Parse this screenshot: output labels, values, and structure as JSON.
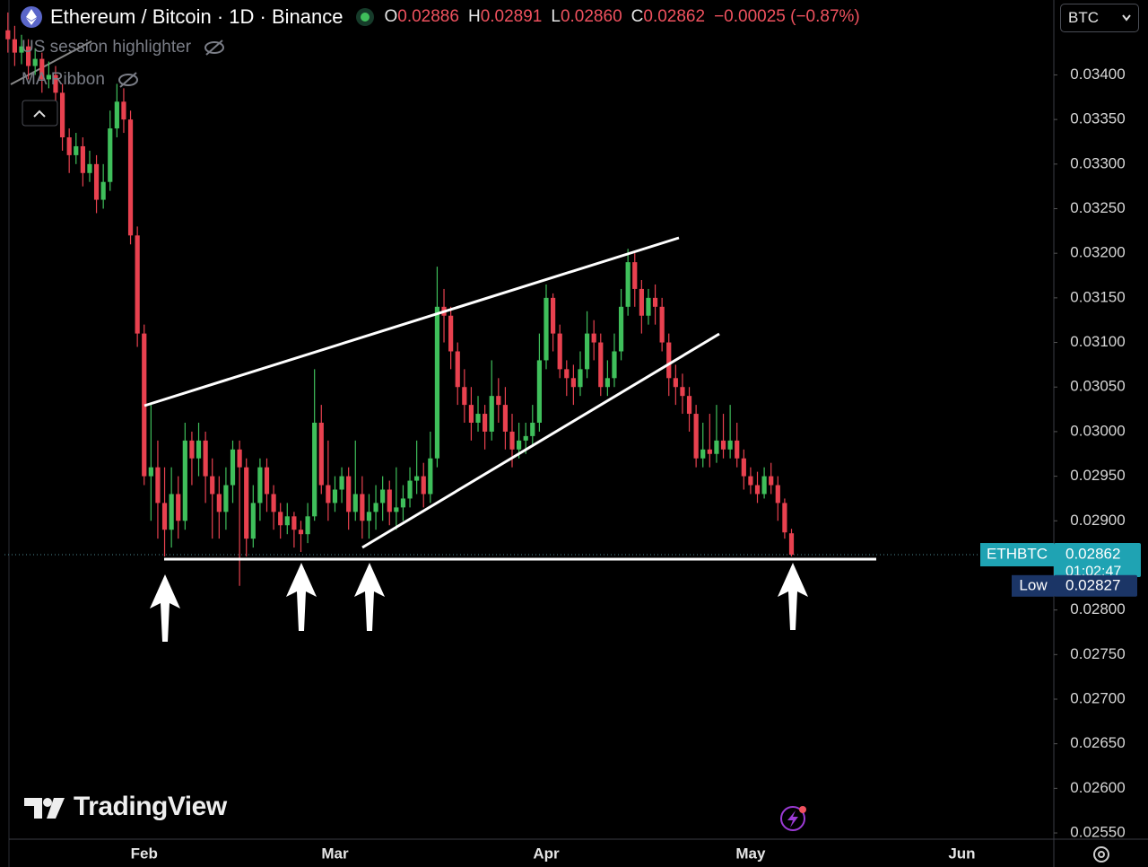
{
  "header": {
    "symbol": "Ethereum / Bitcoin · 1D · Binance",
    "ohlc": [
      {
        "key": "O",
        "value": "0.02886"
      },
      {
        "key": "H",
        "value": "0.02891"
      },
      {
        "key": "L",
        "value": "0.02860"
      },
      {
        "key": "C",
        "value": "0.02862"
      }
    ],
    "change": "−0.00025 (−0.87%)",
    "indicators": [
      "US session highlighter",
      "MA Ribbon"
    ],
    "currency": "BTC",
    "watermark": "TradingView"
  },
  "chart_data": {
    "type": "candlestick",
    "up_color": "#3fbf5b",
    "down_color": "#e8414f",
    "grid": false,
    "ylim": [
      0.02543,
      0.03484
    ],
    "yticks": [
      {
        "value": 0.034,
        "label": "0.03400"
      },
      {
        "value": 0.0335,
        "label": "0.03350"
      },
      {
        "value": 0.033,
        "label": "0.03300"
      },
      {
        "value": 0.0325,
        "label": "0.03250"
      },
      {
        "value": 0.032,
        "label": "0.03200"
      },
      {
        "value": 0.0315,
        "label": "0.03150"
      },
      {
        "value": 0.031,
        "label": "0.03100"
      },
      {
        "value": 0.0305,
        "label": "0.03050"
      },
      {
        "value": 0.03,
        "label": "0.03000"
      },
      {
        "value": 0.0295,
        "label": "0.02950"
      },
      {
        "value": 0.029,
        "label": "0.02900"
      },
      {
        "value": 0.0285,
        "label": "0.02850"
      },
      {
        "value": 0.028,
        "label": "0.02800"
      },
      {
        "value": 0.0275,
        "label": "0.02750"
      },
      {
        "value": 0.027,
        "label": "0.02700"
      },
      {
        "value": 0.0265,
        "label": "0.02650"
      },
      {
        "value": 0.026,
        "label": "0.02600"
      },
      {
        "value": 0.0255,
        "label": "0.02550"
      }
    ],
    "categories": [
      null,
      null,
      null,
      null,
      null,
      null,
      null,
      null,
      null,
      null,
      null,
      null,
      null,
      null,
      null,
      null,
      null,
      null,
      null,
      null,
      "Feb",
      null,
      null,
      null,
      null,
      null,
      null,
      null,
      null,
      null,
      null,
      null,
      null,
      null,
      null,
      null,
      null,
      null,
      null,
      null,
      null,
      null,
      null,
      null,
      null,
      null,
      null,
      null,
      "Mar",
      null,
      null,
      null,
      null,
      null,
      null,
      null,
      null,
      null,
      null,
      null,
      null,
      null,
      null,
      null,
      null,
      null,
      null,
      null,
      null,
      null,
      null,
      null,
      null,
      null,
      null,
      null,
      null,
      null,
      null,
      "Apr",
      null,
      null,
      null,
      null,
      null,
      null,
      null,
      null,
      null,
      null,
      null,
      null,
      null,
      null,
      null,
      null,
      null,
      null,
      null,
      null,
      null,
      null,
      null,
      null,
      null,
      null,
      null,
      null,
      null,
      "May",
      null,
      null,
      null,
      null,
      null,
      null,
      null,
      null,
      null,
      null,
      null,
      null,
      null,
      null,
      null,
      null,
      null,
      null,
      null,
      null,
      null,
      null,
      null,
      null,
      null,
      null,
      null,
      null,
      null,
      null,
      "Jun",
      null,
      null,
      null,
      null,
      null,
      null,
      null,
      null,
      null,
      null,
      null,
      null,
      null
    ],
    "open": [
      0.0345,
      0.0344,
      0.03425,
      0.03432,
      0.0341,
      0.03418,
      0.03395,
      0.034,
      0.0338,
      0.0333,
      0.0331,
      0.0332,
      0.0329,
      0.033,
      0.0326,
      0.0328,
      0.0334,
      0.0337,
      0.0335,
      0.0322,
      0.0311,
      0.0295,
      0.0296,
      0.0292,
      0.0289,
      0.0293,
      0.029,
      0.0299,
      0.0297,
      0.0299,
      0.0295,
      0.0293,
      0.0291,
      0.0294,
      0.0298,
      0.0296,
      0.0288,
      0.0292,
      0.0296,
      0.0293,
      0.0291,
      0.02895,
      0.02905,
      0.0289,
      0.02885,
      0.02905,
      0.0301,
      0.0294,
      0.0292,
      0.02935,
      0.0295,
      0.0291,
      0.0293,
      0.029,
      0.0291,
      0.0292,
      0.02935,
      0.0291,
      0.02915,
      0.02925,
      0.02945,
      0.0295,
      0.0293,
      0.0297,
      0.0314,
      0.0313,
      0.0309,
      0.0305,
      0.0303,
      0.0301,
      0.0302,
      0.03,
      0.0304,
      0.0303,
      0.03,
      0.0298,
      0.0299,
      0.02995,
      0.0301,
      0.0308,
      0.0315,
      0.0311,
      0.0307,
      0.0306,
      0.0305,
      0.0307,
      0.0311,
      0.031,
      0.0305,
      0.0306,
      0.0309,
      0.0314,
      0.0319,
      0.0316,
      0.0313,
      0.0315,
      0.0314,
      0.031,
      0.0306,
      0.0305,
      0.0304,
      0.0302,
      0.0297,
      0.0298,
      0.02975,
      0.0299,
      0.0298,
      0.0299,
      0.0297,
      0.0295,
      0.0294,
      0.0293,
      0.0295,
      0.0294,
      0.0292,
      0.02886,
      null,
      null,
      null,
      null,
      null,
      null,
      null,
      null,
      null,
      null,
      null,
      null,
      null,
      null,
      null,
      null,
      null,
      null,
      null,
      null,
      null,
      null,
      null,
      null,
      null,
      null,
      null,
      null,
      null,
      null,
      null,
      null,
      null,
      null,
      null,
      null,
      null,
      null
    ],
    "high": [
      0.0347,
      0.03455,
      0.03445,
      0.0344,
      0.0343,
      0.03425,
      0.03415,
      0.0341,
      0.0339,
      0.0334,
      0.03335,
      0.0333,
      0.03315,
      0.0331,
      0.033,
      0.0336,
      0.0339,
      0.03385,
      0.0336,
      0.0323,
      0.0312,
      0.0303,
      0.0299,
      0.0296,
      0.0296,
      0.0295,
      0.0301,
      0.03,
      0.0301,
      0.03,
      0.0297,
      0.0295,
      0.0296,
      0.0299,
      0.0299,
      0.0297,
      0.0294,
      0.0297,
      0.0297,
      0.0294,
      0.0292,
      0.0292,
      0.0291,
      0.029,
      0.0292,
      0.0307,
      0.0303,
      0.0299,
      0.0295,
      0.0296,
      0.0296,
      0.0299,
      0.0295,
      0.0293,
      0.0294,
      0.0295,
      0.02945,
      0.0296,
      0.0294,
      0.0296,
      0.0299,
      0.02965,
      0.03,
      0.03185,
      0.0316,
      0.0314,
      0.031,
      0.0307,
      0.0305,
      0.0304,
      0.0303,
      0.0308,
      0.0306,
      0.0305,
      0.0302,
      0.0301,
      0.0301,
      0.0303,
      0.0311,
      0.03165,
      0.03155,
      0.0312,
      0.0308,
      0.03075,
      0.0309,
      0.03135,
      0.03125,
      0.0311,
      0.0308,
      0.0311,
      0.0316,
      0.03205,
      0.032,
      0.0317,
      0.0316,
      0.03165,
      0.0315,
      0.0311,
      0.03075,
      0.03065,
      0.0305,
      0.0303,
      0.0301,
      0.0302,
      0.0303,
      0.0302,
      0.0303,
      0.0301,
      0.0298,
      0.0296,
      0.02955,
      0.0296,
      0.02965,
      0.0295,
      0.02925,
      0.02891,
      null,
      null,
      null,
      null,
      null,
      null,
      null,
      null,
      null,
      null,
      null,
      null,
      null,
      null,
      null,
      null,
      null,
      null,
      null,
      null,
      null,
      null,
      null,
      null,
      null,
      null,
      null,
      null,
      null,
      null,
      null,
      null,
      null,
      null,
      null,
      null,
      null,
      null
    ],
    "low": [
      0.03425,
      0.0341,
      0.03412,
      0.03395,
      0.034,
      0.0338,
      0.03385,
      0.0336,
      0.03315,
      0.0329,
      0.033,
      0.03275,
      0.0328,
      0.03245,
      0.0325,
      0.0327,
      0.0333,
      0.03335,
      0.0321,
      0.03095,
      0.0294,
      0.029,
      0.0288,
      0.0286,
      0.0287,
      0.0288,
      0.0289,
      0.0294,
      0.0295,
      0.0292,
      0.0288,
      0.0288,
      0.0289,
      0.0292,
      0.02827,
      0.0286,
      0.0287,
      0.029,
      0.0291,
      0.0289,
      0.0288,
      0.02885,
      0.0287,
      0.02865,
      0.02875,
      0.029,
      0.0293,
      0.029,
      0.0291,
      0.0292,
      0.0289,
      0.029,
      0.0288,
      0.0288,
      0.0289,
      0.029,
      0.02895,
      0.0289,
      0.029,
      0.02915,
      0.0293,
      0.02915,
      0.0292,
      0.0296,
      0.031,
      0.0307,
      0.0303,
      0.0301,
      0.0299,
      0.03,
      0.0298,
      0.0299,
      0.0301,
      0.0298,
      0.0296,
      0.0297,
      0.02975,
      0.02985,
      0.03,
      0.0307,
      0.0309,
      0.0306,
      0.0304,
      0.0303,
      0.0304,
      0.0306,
      0.0308,
      0.0304,
      0.0304,
      0.0305,
      0.0308,
      0.0313,
      0.0314,
      0.0311,
      0.0312,
      0.0312,
      0.0309,
      0.0304,
      0.0303,
      0.0302,
      0.03,
      0.0296,
      0.0296,
      0.0296,
      0.02965,
      0.0297,
      0.0297,
      0.0296,
      0.02935,
      0.0293,
      0.0292,
      0.02925,
      0.0293,
      0.029,
      0.0288,
      0.0286,
      null,
      null,
      null,
      null,
      null,
      null,
      null,
      null,
      null,
      null,
      null,
      null,
      null,
      null,
      null,
      null,
      null,
      null,
      null,
      null,
      null,
      null,
      null,
      null,
      null,
      null,
      null,
      null,
      null,
      null,
      null,
      null,
      null,
      null,
      null,
      null,
      null,
      null
    ],
    "close": [
      0.0344,
      0.03425,
      0.03432,
      0.0341,
      0.03418,
      0.03395,
      0.034,
      0.0338,
      0.0333,
      0.0331,
      0.0332,
      0.0329,
      0.033,
      0.0326,
      0.0328,
      0.0334,
      0.0337,
      0.0335,
      0.0322,
      0.0311,
      0.0295,
      0.0296,
      0.0292,
      0.0289,
      0.0293,
      0.029,
      0.0299,
      0.0297,
      0.0299,
      0.0295,
      0.0293,
      0.0291,
      0.0294,
      0.0298,
      0.0296,
      0.0288,
      0.0292,
      0.0296,
      0.0293,
      0.0291,
      0.02895,
      0.02905,
      0.0289,
      0.02885,
      0.02905,
      0.0301,
      0.0294,
      0.0292,
      0.02935,
      0.0295,
      0.0291,
      0.0293,
      0.029,
      0.0291,
      0.0292,
      0.02935,
      0.0291,
      0.02915,
      0.02925,
      0.02945,
      0.0295,
      0.0293,
      0.0297,
      0.0314,
      0.0313,
      0.0309,
      0.0305,
      0.0303,
      0.0301,
      0.0302,
      0.03,
      0.0304,
      0.0303,
      0.03,
      0.0298,
      0.0299,
      0.02995,
      0.0301,
      0.0308,
      0.0315,
      0.0311,
      0.0307,
      0.0306,
      0.0305,
      0.0307,
      0.0311,
      0.031,
      0.0305,
      0.0306,
      0.0309,
      0.0314,
      0.0319,
      0.0316,
      0.0313,
      0.0315,
      0.0314,
      0.031,
      0.0306,
      0.0305,
      0.0304,
      0.0302,
      0.0297,
      0.0298,
      0.02975,
      0.0299,
      0.0298,
      0.0299,
      0.0297,
      0.0295,
      0.0294,
      0.0293,
      0.0295,
      0.0294,
      0.0292,
      0.02887,
      0.02862,
      null,
      null,
      null,
      null,
      null,
      null,
      null,
      null,
      null,
      null,
      null,
      null,
      null,
      null,
      null,
      null,
      null,
      null,
      null,
      null,
      null,
      null,
      null,
      null,
      null,
      null,
      null,
      null,
      null,
      null,
      null,
      null,
      null,
      null,
      null,
      null,
      null,
      null
    ],
    "price_labels": [
      {
        "name": "ETHBTC",
        "value": 0.02862,
        "label": "0.02862",
        "countdown": "01:02:47",
        "color": "#1fa3b3"
      },
      {
        "name": "Low",
        "value": 0.02827,
        "label": "0.02827",
        "color": "#1b3566"
      }
    ]
  }
}
